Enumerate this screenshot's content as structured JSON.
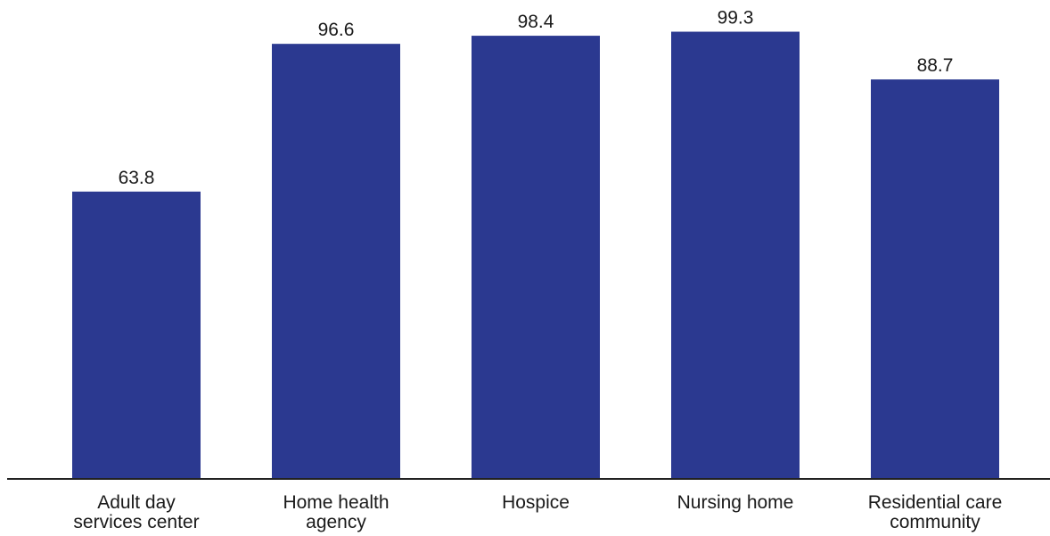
{
  "chart_data": {
    "type": "bar",
    "title": "",
    "xlabel": "",
    "ylabel": "",
    "categories": [
      [
        "Adult day",
        "services center"
      ],
      [
        "Home health",
        "agency"
      ],
      [
        "Hospice"
      ],
      [
        "Nursing home"
      ],
      [
        "Residential care",
        "community"
      ]
    ],
    "values": [
      63.8,
      96.6,
      98.4,
      99.3,
      88.7
    ],
    "value_labels": [
      "63.8",
      "96.6",
      "98.4",
      "99.3",
      "88.7"
    ],
    "ylim": [
      0,
      100
    ],
    "grid": false,
    "legend": "none",
    "bar_color": "#2b3990",
    "axis_color": "#222222"
  }
}
